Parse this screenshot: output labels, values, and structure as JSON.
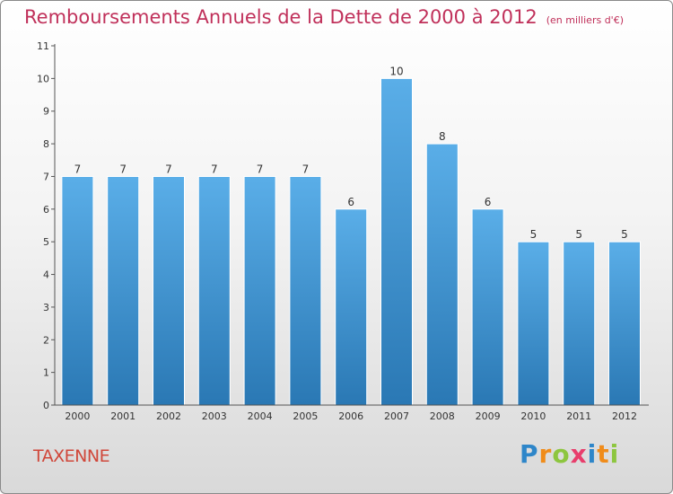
{
  "header": {
    "title": "Remboursements Annuels de la Dette de 2000 à 2012",
    "subtitle": "(en milliers d'€)"
  },
  "commune": "TAXENNE",
  "logo": {
    "text": "Proxiti",
    "letter_colors": [
      "#2e86c9",
      "#f08c1a",
      "#8dc63f",
      "#e83e6c",
      "#2e86c9",
      "#f08c1a",
      "#8dc63f"
    ]
  },
  "colors": {
    "bar_light": "#5aaee8",
    "bar_dark": "#2a78b4",
    "accent": "#c0305a"
  },
  "chart_data": {
    "type": "bar",
    "title": "Remboursements Annuels de la Dette de 2000 à 2012",
    "subtitle": "(en milliers d'€)",
    "categories": [
      "2000",
      "2001",
      "2002",
      "2003",
      "2004",
      "2005",
      "2006",
      "2007",
      "2008",
      "2009",
      "2010",
      "2011",
      "2012"
    ],
    "values": [
      7,
      7,
      7,
      7,
      7,
      7,
      6,
      10,
      8,
      6,
      5,
      5,
      5
    ],
    "ylim": [
      0,
      11
    ],
    "yticks": [
      0,
      1,
      2,
      3,
      4,
      5,
      6,
      7,
      8,
      9,
      10,
      11
    ],
    "grid": false,
    "xlabel": "",
    "ylabel": ""
  }
}
